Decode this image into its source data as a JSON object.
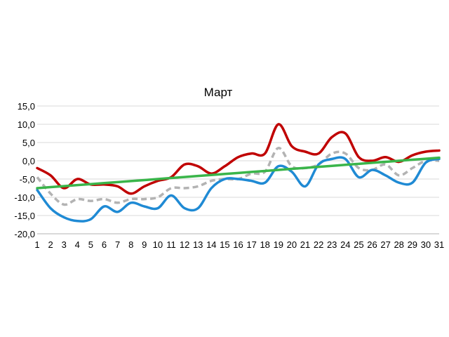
{
  "chart_data": {
    "type": "line",
    "title": "Март",
    "xlabel": "",
    "ylabel": "",
    "x": [
      1,
      2,
      3,
      4,
      5,
      6,
      7,
      8,
      9,
      10,
      11,
      12,
      13,
      14,
      15,
      16,
      17,
      18,
      19,
      20,
      21,
      22,
      23,
      24,
      25,
      26,
      27,
      28,
      29,
      30,
      31
    ],
    "ylim": [
      -20,
      15
    ],
    "yticks": [
      "15,0",
      "10,0",
      "5,0",
      "0,0",
      "-5,0",
      "-10,0",
      "-15,0",
      "-20,0"
    ],
    "ytick_values": [
      15,
      10,
      5,
      0,
      -5,
      -10,
      -15,
      -20
    ],
    "grid": true,
    "legend": "none",
    "series": [
      {
        "key": "max",
        "color": "#c00000",
        "style": "solid",
        "smooth": true,
        "values": [
          -2,
          -4,
          -7.5,
          -5,
          -6.5,
          -6.5,
          -7,
          -9,
          -7,
          -5.5,
          -4.5,
          -1,
          -1.5,
          -3.5,
          -1.5,
          1,
          2,
          2,
          10,
          4,
          2.5,
          2,
          6.5,
          7.5,
          1,
          0,
          1,
          -0.3,
          1.5,
          2.5,
          2.8
        ]
      },
      {
        "key": "avg",
        "color": "#b3b3b3",
        "style": "dashed",
        "smooth": true,
        "values": [
          -4.5,
          -9,
          -12,
          -10.5,
          -11,
          -10.5,
          -11.5,
          -10.5,
          -10.5,
          -10,
          -7.5,
          -7.5,
          -7,
          -5.5,
          -5,
          -5,
          -3.5,
          -3,
          3.5,
          -1.5,
          -2,
          -1,
          2,
          2,
          -2,
          -2.5,
          -1,
          -4,
          -2,
          0,
          0
        ]
      },
      {
        "key": "min",
        "color": "#1f8ad4",
        "style": "solid",
        "smooth": true,
        "values": [
          -8,
          -13,
          -15.5,
          -16.5,
          -16,
          -12.5,
          -14,
          -11.5,
          -12.5,
          -13,
          -9.5,
          -13,
          -13,
          -7.5,
          -5,
          -5,
          -5.5,
          -6,
          -1.5,
          -3,
          -7,
          -1,
          0.5,
          0.5,
          -4.5,
          -2.5,
          -4,
          -6,
          -6,
          -0.5,
          0.5
        ]
      },
      {
        "key": "trend",
        "color": "#3ab54a",
        "style": "solid",
        "smooth": false,
        "values": [
          -7.5,
          -7.222,
          -6.944,
          -6.667,
          -6.389,
          -6.111,
          -5.833,
          -5.556,
          -5.278,
          -5,
          -4.722,
          -4.444,
          -4.167,
          -3.889,
          -3.611,
          -3.333,
          -3.056,
          -2.778,
          -2.5,
          -2.222,
          -1.944,
          -1.667,
          -1.389,
          -1.111,
          -0.833,
          -0.556,
          -0.278,
          0,
          0.278,
          0.556,
          0.833
        ]
      }
    ]
  }
}
